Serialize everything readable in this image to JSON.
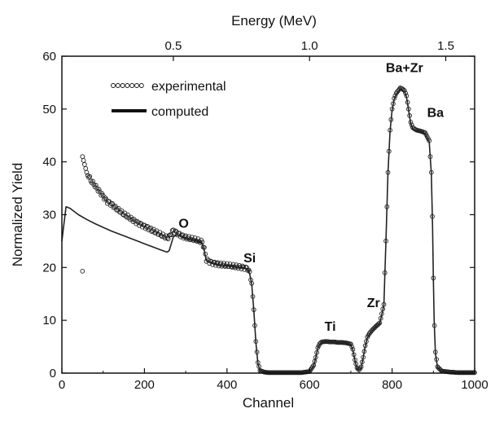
{
  "chart_data": {
    "type": "scatter",
    "xlabel": "Channel",
    "ylabel": "Normalized Yield",
    "x2label": "Energy (MeV)",
    "xlim": [
      0,
      1000
    ],
    "ylim": [
      0,
      60
    ],
    "x_ticks": [
      0,
      200,
      400,
      600,
      800,
      1000
    ],
    "y_ticks": [
      0,
      10,
      20,
      30,
      40,
      50,
      60
    ],
    "x2_ticks": [
      {
        "channel": 270,
        "label": "0.5"
      },
      {
        "channel": 600,
        "label": "1.0"
      },
      {
        "channel": 930,
        "label": "1.5"
      }
    ],
    "grid": false,
    "legend": {
      "placement": "top-left",
      "entries": [
        {
          "name": "experimental",
          "style": "open-circles"
        },
        {
          "name": "computed",
          "style": "thick-line"
        }
      ]
    },
    "annotations": [
      {
        "text": "O",
        "x": 295,
        "y": 27.5
      },
      {
        "text": "Si",
        "x": 455,
        "y": 21
      },
      {
        "text": "Ti",
        "x": 650,
        "y": 8
      },
      {
        "text": "Zr",
        "x": 755,
        "y": 12.5
      },
      {
        "text": "Ba+Zr",
        "x": 830,
        "y": 57
      },
      {
        "text": "Ba",
        "x": 905,
        "y": 48.5
      }
    ],
    "series": [
      {
        "name": "experimental",
        "style": "open-circles",
        "color": "#222222",
        "x": [
          50,
          60,
          70,
          80,
          90,
          100,
          110,
          120,
          130,
          140,
          150,
          160,
          170,
          180,
          190,
          200,
          210,
          220,
          230,
          240,
          250,
          255,
          260,
          265,
          270,
          280,
          290,
          300,
          310,
          320,
          330,
          340,
          345,
          350,
          360,
          370,
          380,
          390,
          400,
          410,
          420,
          430,
          440,
          450,
          455,
          460,
          465,
          470,
          475,
          480,
          490,
          500,
          520,
          540,
          560,
          580,
          600,
          610,
          615,
          620,
          625,
          630,
          640,
          650,
          660,
          670,
          680,
          690,
          700,
          705,
          710,
          715,
          720,
          725,
          730,
          735,
          740,
          745,
          750,
          760,
          770,
          780,
          785,
          790,
          795,
          800,
          805,
          810,
          815,
          820,
          825,
          830,
          835,
          840,
          845,
          850,
          855,
          860,
          870,
          880,
          890,
          895,
          898,
          900,
          902,
          905,
          910,
          920,
          940,
          960,
          980,
          1000
        ],
        "y": [
          41,
          38,
          36.5,
          35.5,
          34.5,
          33.5,
          32.5,
          32,
          31.3,
          30.7,
          30.1,
          29.6,
          29.1,
          28.6,
          28.2,
          27.8,
          27.4,
          27,
          26.6,
          26.2,
          25.8,
          25.6,
          25.8,
          26.5,
          27,
          26.5,
          26,
          25.7,
          25.5,
          25.3,
          25.1,
          24.8,
          23.5,
          21.5,
          21,
          20.8,
          20.6,
          20.5,
          20.4,
          20.3,
          20.2,
          20.1,
          20,
          19.8,
          19,
          17,
          12,
          6,
          2,
          0.5,
          0.2,
          0.1,
          0.1,
          0.1,
          0.1,
          0.1,
          0.3,
          1.5,
          3,
          4.8,
          5.6,
          5.9,
          6,
          5.9,
          5.9,
          5.8,
          5.8,
          5.7,
          5.5,
          4.5,
          2.5,
          1,
          0.6,
          1.2,
          3,
          5.2,
          6.8,
          7.5,
          8,
          8.8,
          9.5,
          13,
          25,
          38,
          46,
          50,
          52,
          53,
          53.5,
          54,
          53.8,
          53.5,
          52.5,
          50,
          47.5,
          46.5,
          46.2,
          46,
          45.8,
          45.5,
          44,
          38,
          28,
          18,
          10,
          4,
          1.2,
          0.4,
          0.2,
          0.1,
          0.1,
          0.1
        ],
        "outliers": [
          {
            "x": 50,
            "y": 19.3
          }
        ]
      },
      {
        "name": "computed",
        "style": "line",
        "color": "#222222",
        "x": [
          0,
          10,
          20,
          40,
          60,
          80,
          100,
          120,
          140,
          160,
          180,
          200,
          220,
          240,
          255,
          260,
          265,
          270,
          280,
          290,
          300,
          310,
          320,
          330,
          340,
          345,
          350,
          360,
          370,
          380,
          390,
          400,
          410,
          420,
          430,
          440,
          450,
          455,
          460,
          465,
          470,
          475,
          480,
          490,
          500,
          520,
          540,
          560,
          580,
          600,
          610,
          615,
          620,
          625,
          630,
          640,
          650,
          660,
          670,
          680,
          690,
          700,
          705,
          710,
          715,
          720,
          725,
          730,
          735,
          740,
          745,
          750,
          760,
          770,
          780,
          785,
          790,
          795,
          800,
          805,
          810,
          815,
          820,
          825,
          830,
          835,
          840,
          845,
          850,
          855,
          860,
          870,
          880,
          890,
          895,
          898,
          900,
          902,
          905,
          910,
          920,
          940,
          960,
          980,
          1000
        ],
        "y": [
          25,
          31.5,
          31.2,
          30,
          29.1,
          28.3,
          27.6,
          26.9,
          26.3,
          25.7,
          25.1,
          24.5,
          23.9,
          23.3,
          22.9,
          23.2,
          24.5,
          25.8,
          26.2,
          25.8,
          25.5,
          25.3,
          25.1,
          24.9,
          24.6,
          23.2,
          21.3,
          20.9,
          20.7,
          20.5,
          20.4,
          20.3,
          20.2,
          20.1,
          20,
          19.9,
          19.7,
          18.8,
          16.8,
          11.8,
          5.8,
          1.8,
          0.5,
          0.2,
          0.1,
          0.1,
          0.1,
          0.1,
          0.1,
          0.3,
          1.4,
          2.9,
          4.7,
          5.5,
          5.8,
          5.9,
          5.8,
          5.8,
          5.7,
          5.7,
          5.6,
          5.4,
          4.4,
          2.4,
          0.9,
          0.5,
          1.1,
          2.9,
          5.1,
          6.7,
          7.4,
          7.9,
          8.7,
          9.4,
          12.8,
          24.8,
          37.8,
          45.8,
          49.8,
          51.8,
          52.8,
          53.3,
          53.8,
          53.6,
          53.3,
          52.3,
          49.8,
          47.3,
          46.3,
          46,
          45.8,
          45.6,
          45.3,
          43.8,
          37.8,
          27.8,
          17.8,
          9.8,
          3.8,
          1.1,
          0.3,
          0.1,
          0.1,
          0.1,
          0.1
        ]
      }
    ]
  }
}
